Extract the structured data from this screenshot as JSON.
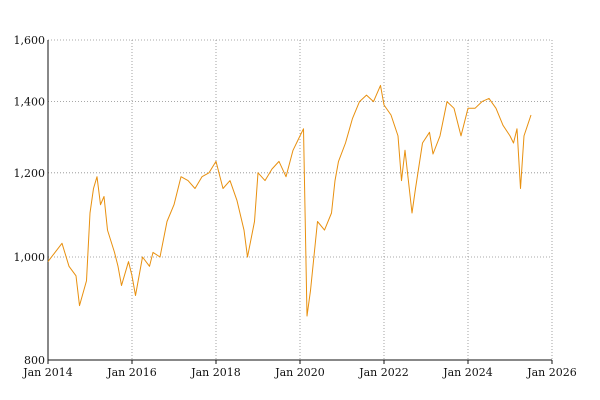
{
  "chart_data": {
    "type": "line",
    "title": "",
    "xlabel": "",
    "ylabel": "",
    "y_scale": "log",
    "grid": true,
    "legend": "none",
    "xlim": [
      "2014-01",
      "2026-01"
    ],
    "ylim": [
      800,
      1600
    ],
    "x_ticks": [
      {
        "value": "2014-01",
        "label": "Jan 2014"
      },
      {
        "value": "2016-01",
        "label": "Jan 2016"
      },
      {
        "value": "2018-01",
        "label": "Jan 2018"
      },
      {
        "value": "2020-01",
        "label": "Jan 2020"
      },
      {
        "value": "2022-01",
        "label": "Jan 2022"
      },
      {
        "value": "2024-01",
        "label": "Jan 2024"
      },
      {
        "value": "2026-01",
        "label": "Jan 2026"
      }
    ],
    "y_ticks": [
      {
        "value": 800,
        "label": "800"
      },
      {
        "value": 1000,
        "label": "1,000"
      },
      {
        "value": 1200,
        "label": "1,200"
      },
      {
        "value": 1400,
        "label": "1,400"
      },
      {
        "value": 1600,
        "label": "1,600"
      }
    ],
    "series": [
      {
        "color": "#e8900f",
        "x": [
          "2014-01",
          "2014-03",
          "2014-05",
          "2014-07",
          "2014-09",
          "2014-10",
          "2014-12",
          "2015-01",
          "2015-02",
          "2015-03",
          "2015-04",
          "2015-05",
          "2015-06",
          "2015-08",
          "2015-09",
          "2015-10",
          "2015-12",
          "2016-01",
          "2016-02",
          "2016-04",
          "2016-06",
          "2016-07",
          "2016-09",
          "2016-11",
          "2017-01",
          "2017-03",
          "2017-05",
          "2017-07",
          "2017-09",
          "2017-11",
          "2018-01",
          "2018-03",
          "2018-05",
          "2018-07",
          "2018-09",
          "2018-10",
          "2018-12",
          "2019-01",
          "2019-03",
          "2019-05",
          "2019-07",
          "2019-09",
          "2019-11",
          "2020-01",
          "2020-02",
          "2020-03",
          "2020-04",
          "2020-06",
          "2020-08",
          "2020-10",
          "2020-11",
          "2020-12",
          "2021-02",
          "2021-04",
          "2021-06",
          "2021-08",
          "2021-10",
          "2021-12",
          "2022-01",
          "2022-03",
          "2022-05",
          "2022-06",
          "2022-07",
          "2022-09",
          "2022-10",
          "2022-12",
          "2023-02",
          "2023-03",
          "2023-05",
          "2023-07",
          "2023-09",
          "2023-11",
          "2024-01",
          "2024-03",
          "2024-05",
          "2024-07",
          "2024-09",
          "2024-11",
          "2025-01",
          "2025-02",
          "2025-03",
          "2025-04",
          "2025-05",
          "2025-07"
        ],
        "y": [
          990,
          1010,
          1030,
          980,
          960,
          900,
          950,
          1100,
          1160,
          1190,
          1120,
          1140,
          1060,
          1010,
          980,
          940,
          990,
          960,
          920,
          1000,
          980,
          1010,
          1000,
          1080,
          1120,
          1190,
          1180,
          1160,
          1190,
          1200,
          1230,
          1160,
          1180,
          1130,
          1060,
          1000,
          1080,
          1200,
          1180,
          1210,
          1230,
          1190,
          1260,
          1300,
          1320,
          880,
          930,
          1080,
          1060,
          1100,
          1180,
          1230,
          1280,
          1350,
          1400,
          1420,
          1400,
          1450,
          1390,
          1360,
          1300,
          1180,
          1260,
          1100,
          1160,
          1280,
          1310,
          1250,
          1300,
          1400,
          1380,
          1300,
          1380,
          1380,
          1400,
          1410,
          1380,
          1330,
          1300,
          1280,
          1320,
          1160,
          1300,
          1360
        ]
      }
    ]
  }
}
